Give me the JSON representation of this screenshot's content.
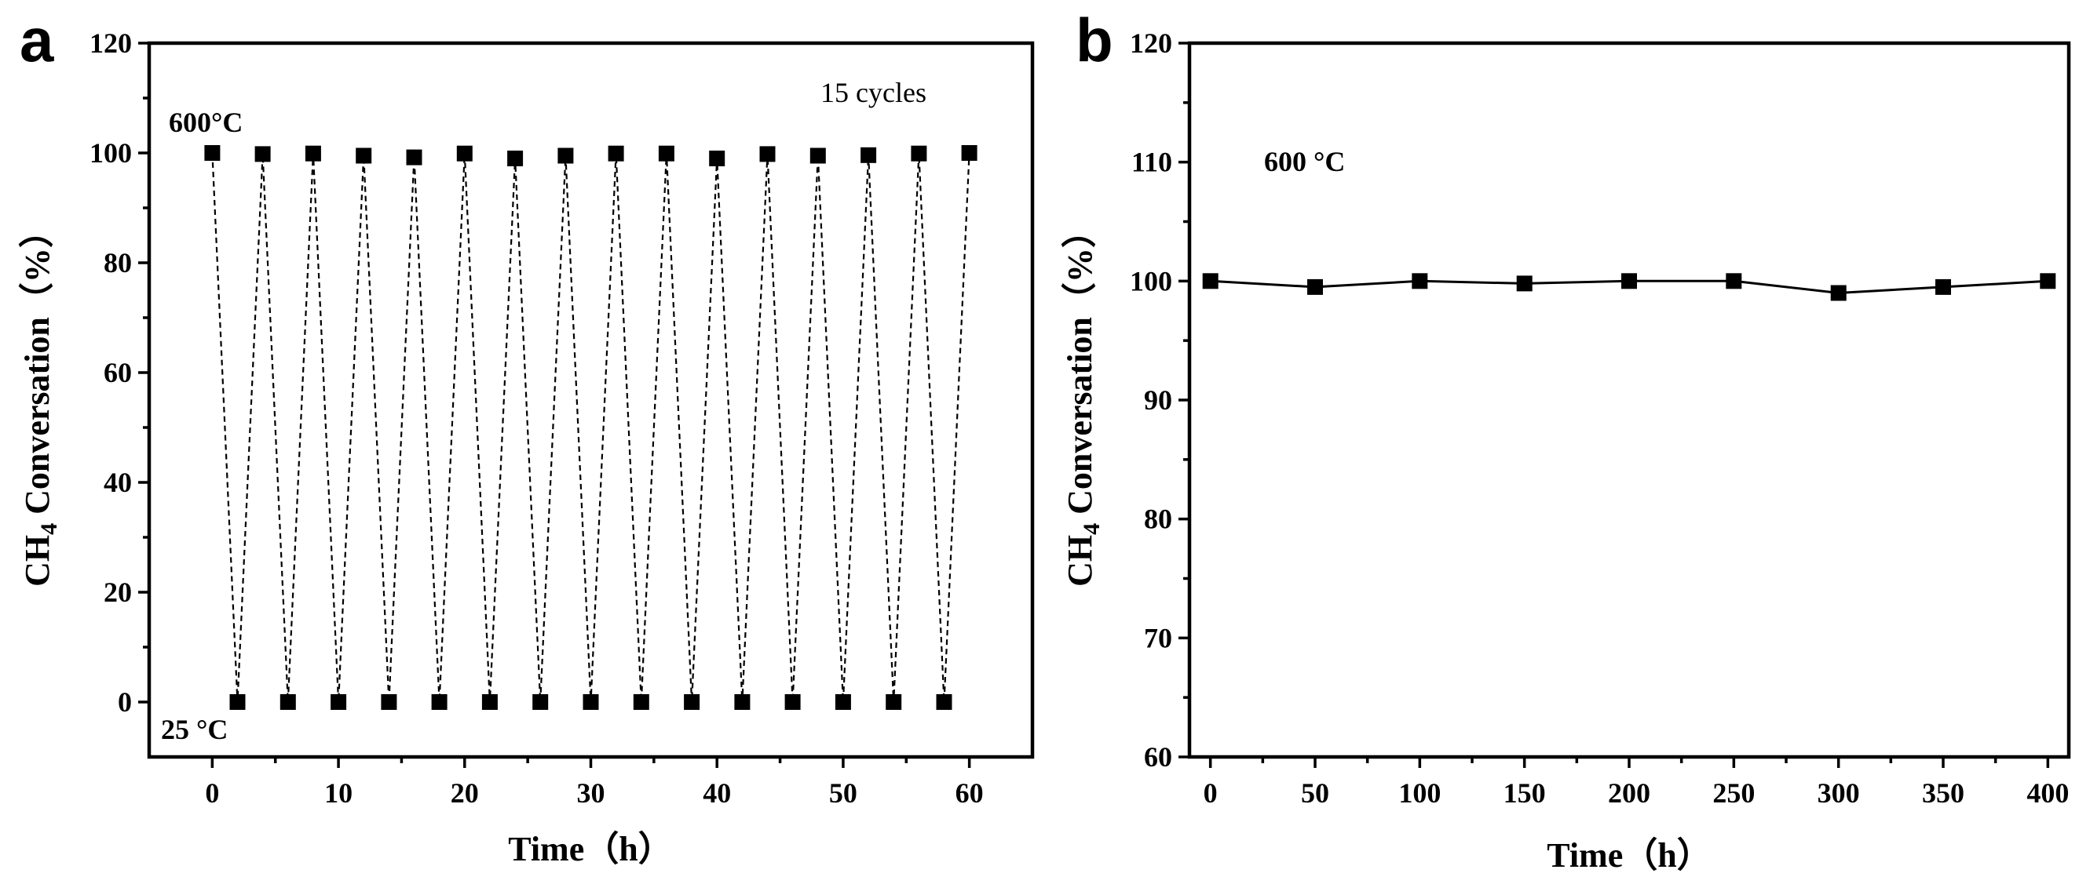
{
  "chart_data": [
    {
      "panel_label": "a",
      "type": "line",
      "line_style": "dashed",
      "marker": "square",
      "xlabel": "Time（h）",
      "ylabel": "CH4 Conversation（%）",
      "xlim": [
        -5,
        65
      ],
      "ylim": [
        -10,
        120
      ],
      "xticks": [
        0,
        10,
        20,
        30,
        40,
        50,
        60
      ],
      "yticks": [
        0,
        20,
        40,
        60,
        80,
        100,
        120
      ],
      "x": [
        0,
        2,
        4,
        6,
        8,
        10,
        12,
        14,
        16,
        18,
        20,
        22,
        24,
        26,
        28,
        30,
        32,
        34,
        36,
        38,
        40,
        42,
        44,
        46,
        48,
        50,
        52,
        54,
        56,
        58,
        60
      ],
      "y": [
        100,
        0,
        99.8,
        0,
        99.9,
        0,
        99.5,
        0,
        99.2,
        0,
        99.9,
        0,
        99.0,
        0,
        99.5,
        0,
        99.9,
        0,
        99.9,
        0,
        99.0,
        0,
        99.8,
        0,
        99.5,
        0,
        99.6,
        0,
        99.9,
        0,
        100
      ],
      "annotations": [
        "15 cycles",
        "600°C",
        "25 °C"
      ]
    },
    {
      "panel_label": "b",
      "type": "line",
      "line_style": "solid",
      "marker": "square",
      "xlabel": "Time（h）",
      "ylabel": "CH4 Conversation（%）",
      "xlim": [
        -10,
        410
      ],
      "ylim": [
        60,
        120
      ],
      "xticks": [
        0,
        50,
        100,
        150,
        200,
        250,
        300,
        350,
        400
      ],
      "yticks": [
        60,
        70,
        80,
        90,
        100,
        110,
        120
      ],
      "x": [
        0,
        50,
        100,
        150,
        200,
        250,
        300,
        350,
        400
      ],
      "y": [
        100,
        99.5,
        100,
        99.8,
        100,
        100,
        99.0,
        99.5,
        100
      ],
      "annotations": [
        "600 °C"
      ]
    }
  ]
}
